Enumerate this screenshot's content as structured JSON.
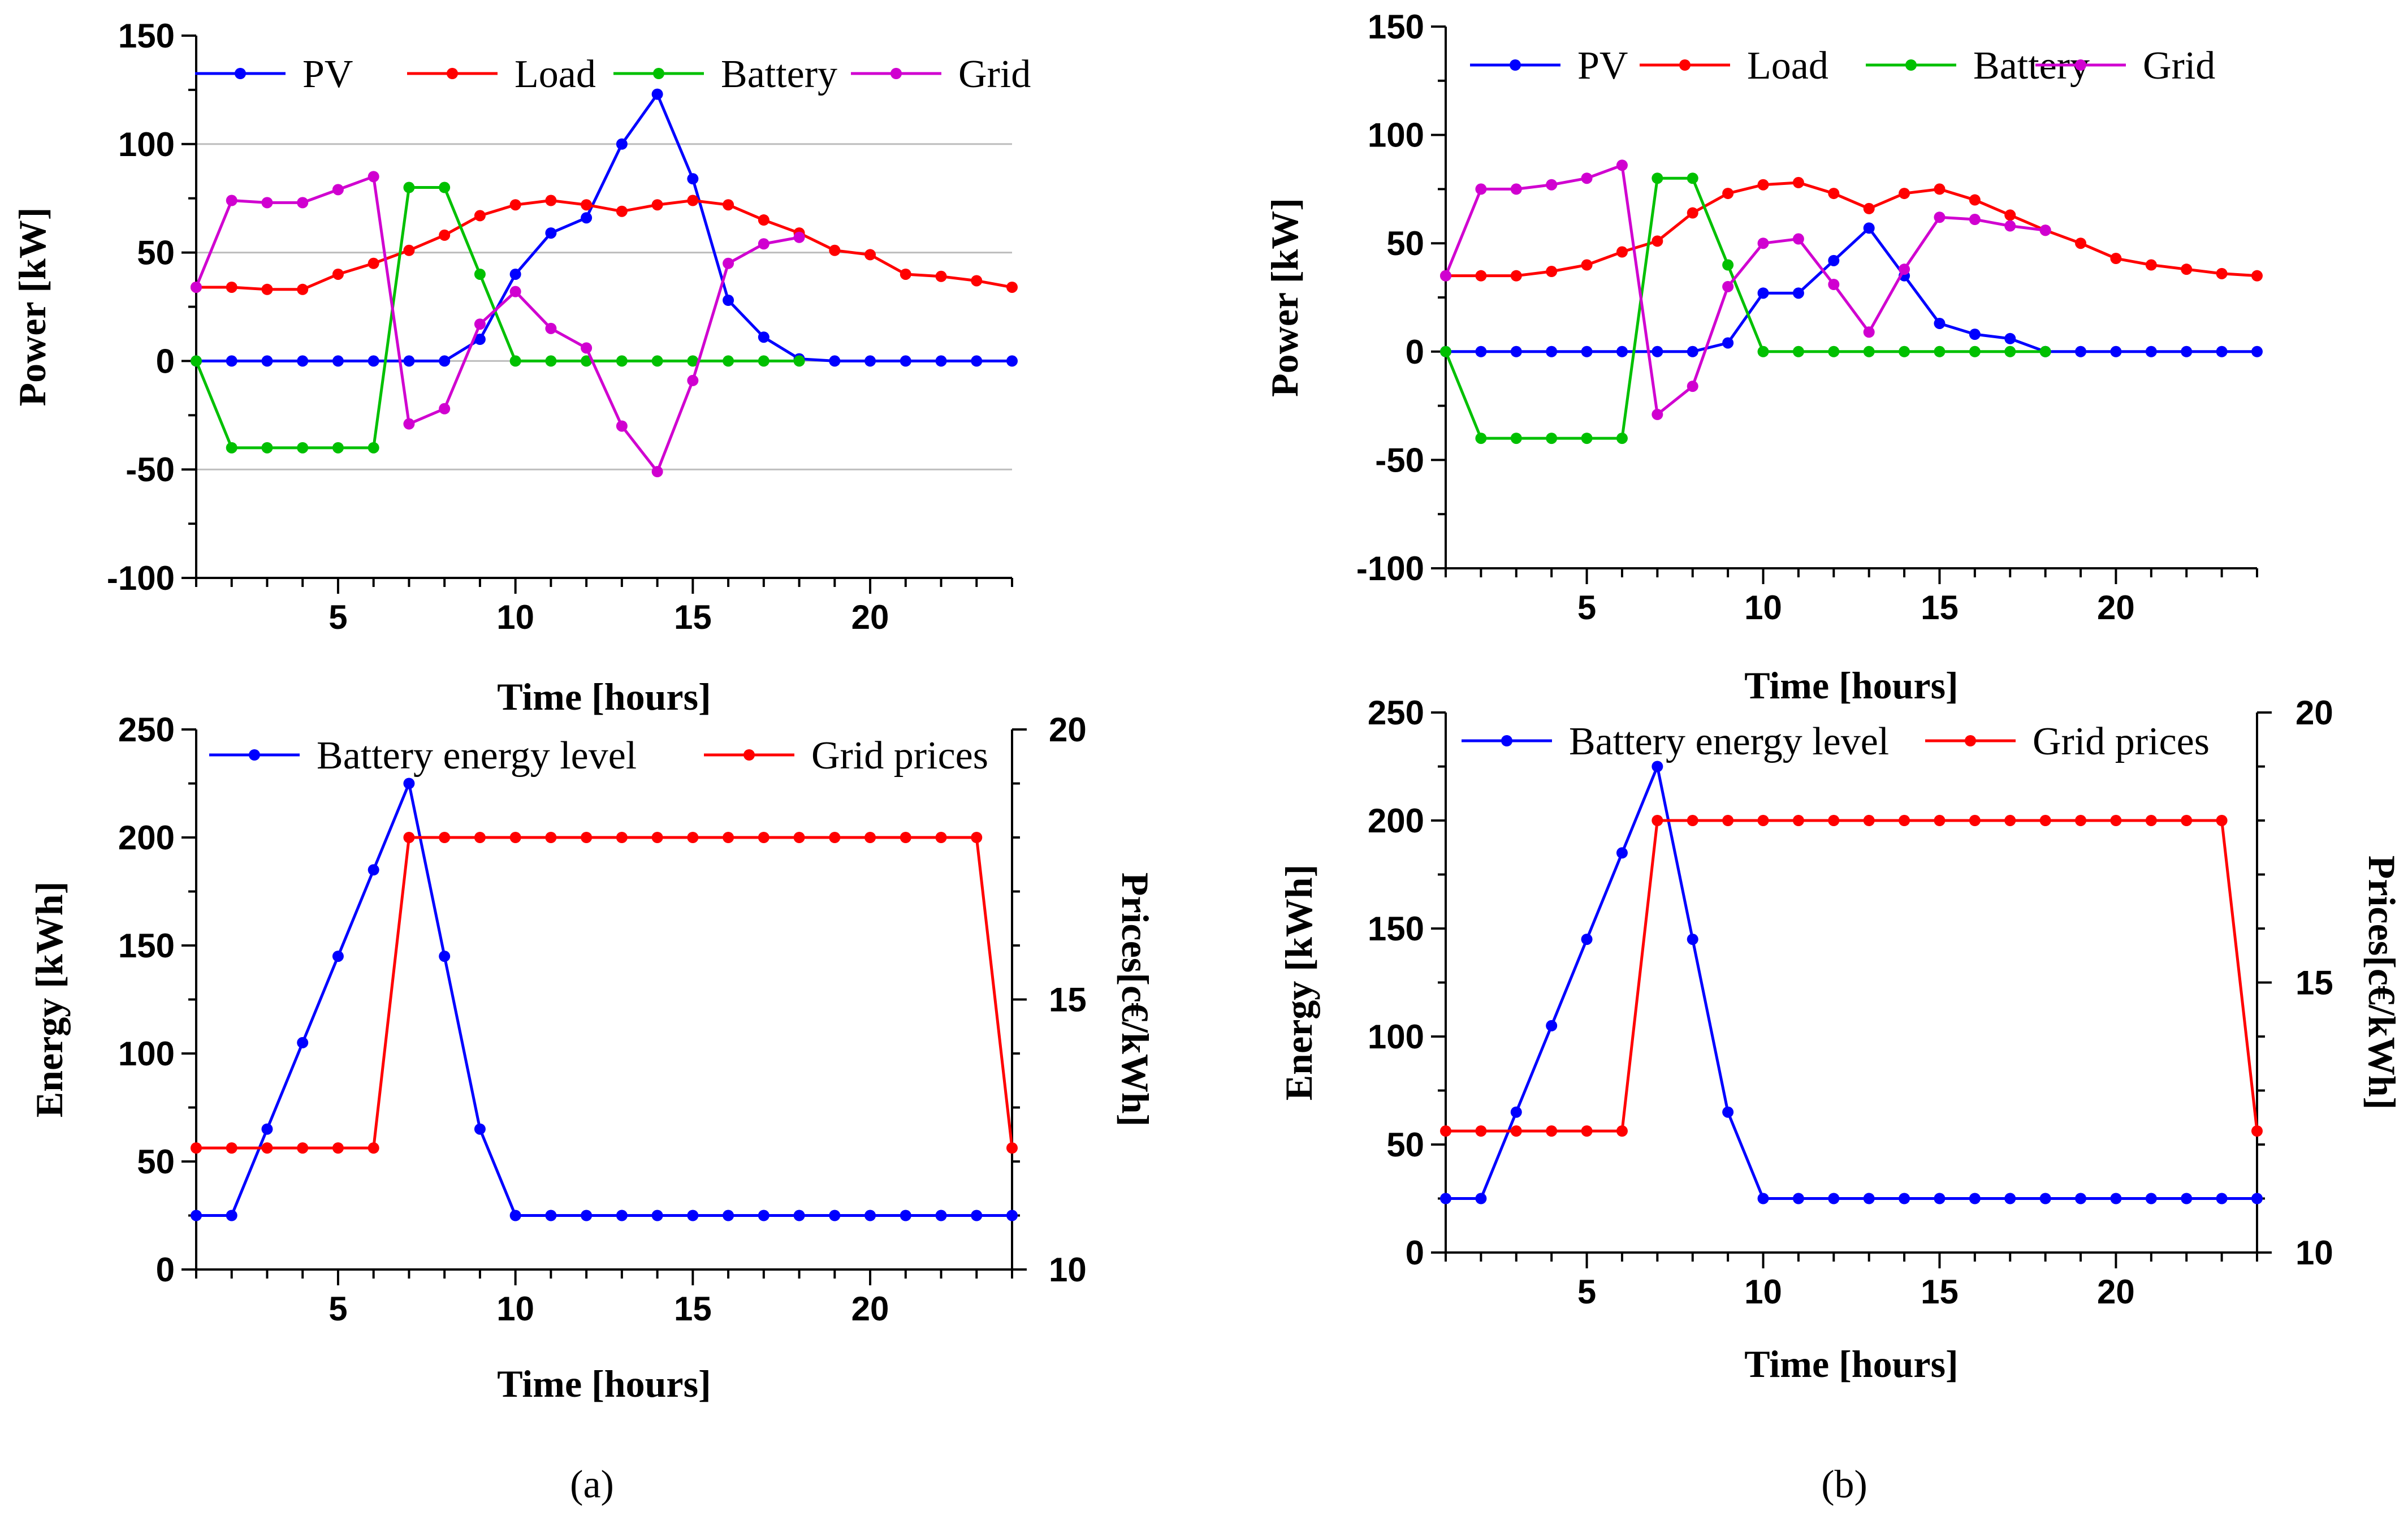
{
  "captions": [
    "(a)",
    "(b)"
  ],
  "chart_data": [
    {
      "type": "line",
      "panel": "a-top",
      "title": "",
      "xlabel": "Time [hours]",
      "ylabel": "Power [kW]",
      "xlim": [
        1,
        24
      ],
      "ylim": [
        -100,
        150
      ],
      "xticks": [
        5,
        10,
        15,
        20
      ],
      "yticks": [
        -100,
        -50,
        0,
        50,
        100,
        150
      ],
      "grid": "horizontal",
      "legend": "top",
      "x": [
        1,
        2,
        3,
        4,
        5,
        6,
        7,
        8,
        9,
        10,
        11,
        12,
        13,
        14,
        15,
        16,
        17,
        18,
        19,
        20,
        21,
        22,
        23,
        24
      ],
      "series": [
        {
          "name": "PV",
          "color": "#0000ff",
          "values": [
            0,
            0,
            0,
            0,
            0,
            0,
            0,
            0,
            10,
            40,
            59,
            66,
            100,
            123,
            84,
            28,
            11,
            1,
            0,
            0,
            0,
            0,
            0,
            0
          ]
        },
        {
          "name": "Load",
          "color": "#ff0000",
          "values": [
            34,
            34,
            33,
            33,
            40,
            45,
            51,
            58,
            67,
            72,
            74,
            72,
            69,
            72,
            74,
            72,
            65,
            59,
            51,
            49,
            40,
            39,
            37,
            34
          ]
        },
        {
          "name": "Battery",
          "color": "#00c000",
          "values": [
            0,
            -40,
            -40,
            -40,
            -40,
            -40,
            80,
            80,
            40,
            0,
            0,
            0,
            0,
            0,
            0,
            0,
            0,
            0,
            null,
            null,
            null,
            null,
            null,
            null
          ]
        },
        {
          "name": "Grid",
          "color": "#d000d0",
          "values": [
            34,
            74,
            73,
            73,
            79,
            85,
            -29,
            -22,
            17,
            32,
            15,
            6,
            -30,
            -51,
            -9,
            45,
            54,
            57,
            null,
            null,
            null,
            null,
            null,
            null
          ]
        }
      ]
    },
    {
      "type": "line",
      "panel": "a-bottom",
      "title": "",
      "xlabel": "Time [hours]",
      "ylabel": "Energy [kWh]",
      "ylabel_right": "Prices[c€/kWh]",
      "xlim": [
        1,
        24
      ],
      "ylim": [
        0,
        250
      ],
      "ylim_right": [
        10,
        20
      ],
      "xticks": [
        5,
        10,
        15,
        20
      ],
      "yticks": [
        0,
        50,
        100,
        150,
        200,
        250
      ],
      "yticks_right": [
        10,
        15,
        20
      ],
      "grid": "none",
      "legend": "top",
      "x": [
        1,
        2,
        3,
        4,
        5,
        6,
        7,
        8,
        9,
        10,
        11,
        12,
        13,
        14,
        15,
        16,
        17,
        18,
        19,
        20,
        21,
        22,
        23,
        24
      ],
      "series": [
        {
          "name": "Battery energy level",
          "color": "#0000ff",
          "axis": "left",
          "values": [
            25,
            25,
            65,
            105,
            145,
            185,
            225,
            145,
            65,
            25,
            25,
            25,
            25,
            25,
            25,
            25,
            25,
            25,
            25,
            25,
            25,
            25,
            25,
            25
          ]
        },
        {
          "name": "Grid prices",
          "color": "#ff0000",
          "axis": "right",
          "values": [
            12.25,
            12.25,
            12.25,
            12.25,
            12.25,
            12.25,
            18,
            18,
            18,
            18,
            18,
            18,
            18,
            18,
            18,
            18,
            18,
            18,
            18,
            18,
            18,
            18,
            18,
            12.25
          ]
        }
      ]
    },
    {
      "type": "line",
      "panel": "b-top",
      "title": "",
      "xlabel": "Time [hours]",
      "ylabel": "Power [kW]",
      "xlim": [
        1,
        24
      ],
      "ylim": [
        -100,
        150
      ],
      "xticks": [
        5,
        10,
        15,
        20
      ],
      "yticks": [
        -100,
        -50,
        0,
        50,
        100,
        150
      ],
      "grid": "none",
      "legend": "top",
      "x": [
        1,
        2,
        3,
        4,
        5,
        6,
        7,
        8,
        9,
        10,
        11,
        12,
        13,
        14,
        15,
        16,
        17,
        18,
        19,
        20,
        21,
        22,
        23,
        24
      ],
      "series": [
        {
          "name": "PV",
          "color": "#0000ff",
          "values": [
            0,
            0,
            0,
            0,
            0,
            0,
            0,
            0,
            4,
            27,
            27,
            42,
            57,
            35,
            13,
            8,
            6,
            0,
            0,
            0,
            0,
            0,
            0,
            0
          ]
        },
        {
          "name": "Load",
          "color": "#ff0000",
          "values": [
            35,
            35,
            35,
            37,
            40,
            46,
            51,
            64,
            73,
            77,
            78,
            73,
            66,
            73,
            75,
            70,
            63,
            56,
            50,
            43,
            40,
            38,
            36,
            35
          ]
        },
        {
          "name": "Battery",
          "color": "#00c000",
          "values": [
            0,
            -40,
            -40,
            -40,
            -40,
            -40,
            80,
            80,
            40,
            0,
            0,
            0,
            0,
            0,
            0,
            0,
            0,
            0,
            null,
            null,
            null,
            null,
            null,
            null
          ]
        },
        {
          "name": "Grid",
          "color": "#d000d0",
          "values": [
            35,
            75,
            75,
            77,
            80,
            86,
            -29,
            -16,
            30,
            50,
            52,
            31,
            9,
            38,
            62,
            61,
            58,
            56,
            null,
            null,
            null,
            null,
            null,
            null
          ]
        }
      ]
    },
    {
      "type": "line",
      "panel": "b-bottom",
      "title": "",
      "xlabel": "Time [hours]",
      "ylabel": "Energy [kWh]",
      "ylabel_right": "Prices[c€/kWh]",
      "xlim": [
        1,
        24
      ],
      "ylim": [
        0,
        250
      ],
      "ylim_right": [
        10,
        20
      ],
      "xticks": [
        5,
        10,
        15,
        20
      ],
      "yticks": [
        0,
        50,
        100,
        150,
        200,
        250
      ],
      "yticks_right": [
        10,
        15,
        20
      ],
      "grid": "none",
      "legend": "top",
      "x": [
        1,
        2,
        3,
        4,
        5,
        6,
        7,
        8,
        9,
        10,
        11,
        12,
        13,
        14,
        15,
        16,
        17,
        18,
        19,
        20,
        21,
        22,
        23,
        24
      ],
      "series": [
        {
          "name": "Battery energy level",
          "color": "#0000ff",
          "axis": "left",
          "values": [
            25,
            25,
            65,
            105,
            145,
            185,
            225,
            145,
            65,
            25,
            25,
            25,
            25,
            25,
            25,
            25,
            25,
            25,
            25,
            25,
            25,
            25,
            25,
            25
          ]
        },
        {
          "name": "Grid prices",
          "color": "#ff0000",
          "axis": "right",
          "values": [
            12.25,
            12.25,
            12.25,
            12.25,
            12.25,
            12.25,
            18,
            18,
            18,
            18,
            18,
            18,
            18,
            18,
            18,
            18,
            18,
            18,
            18,
            18,
            18,
            18,
            18,
            12.25
          ]
        }
      ]
    }
  ]
}
